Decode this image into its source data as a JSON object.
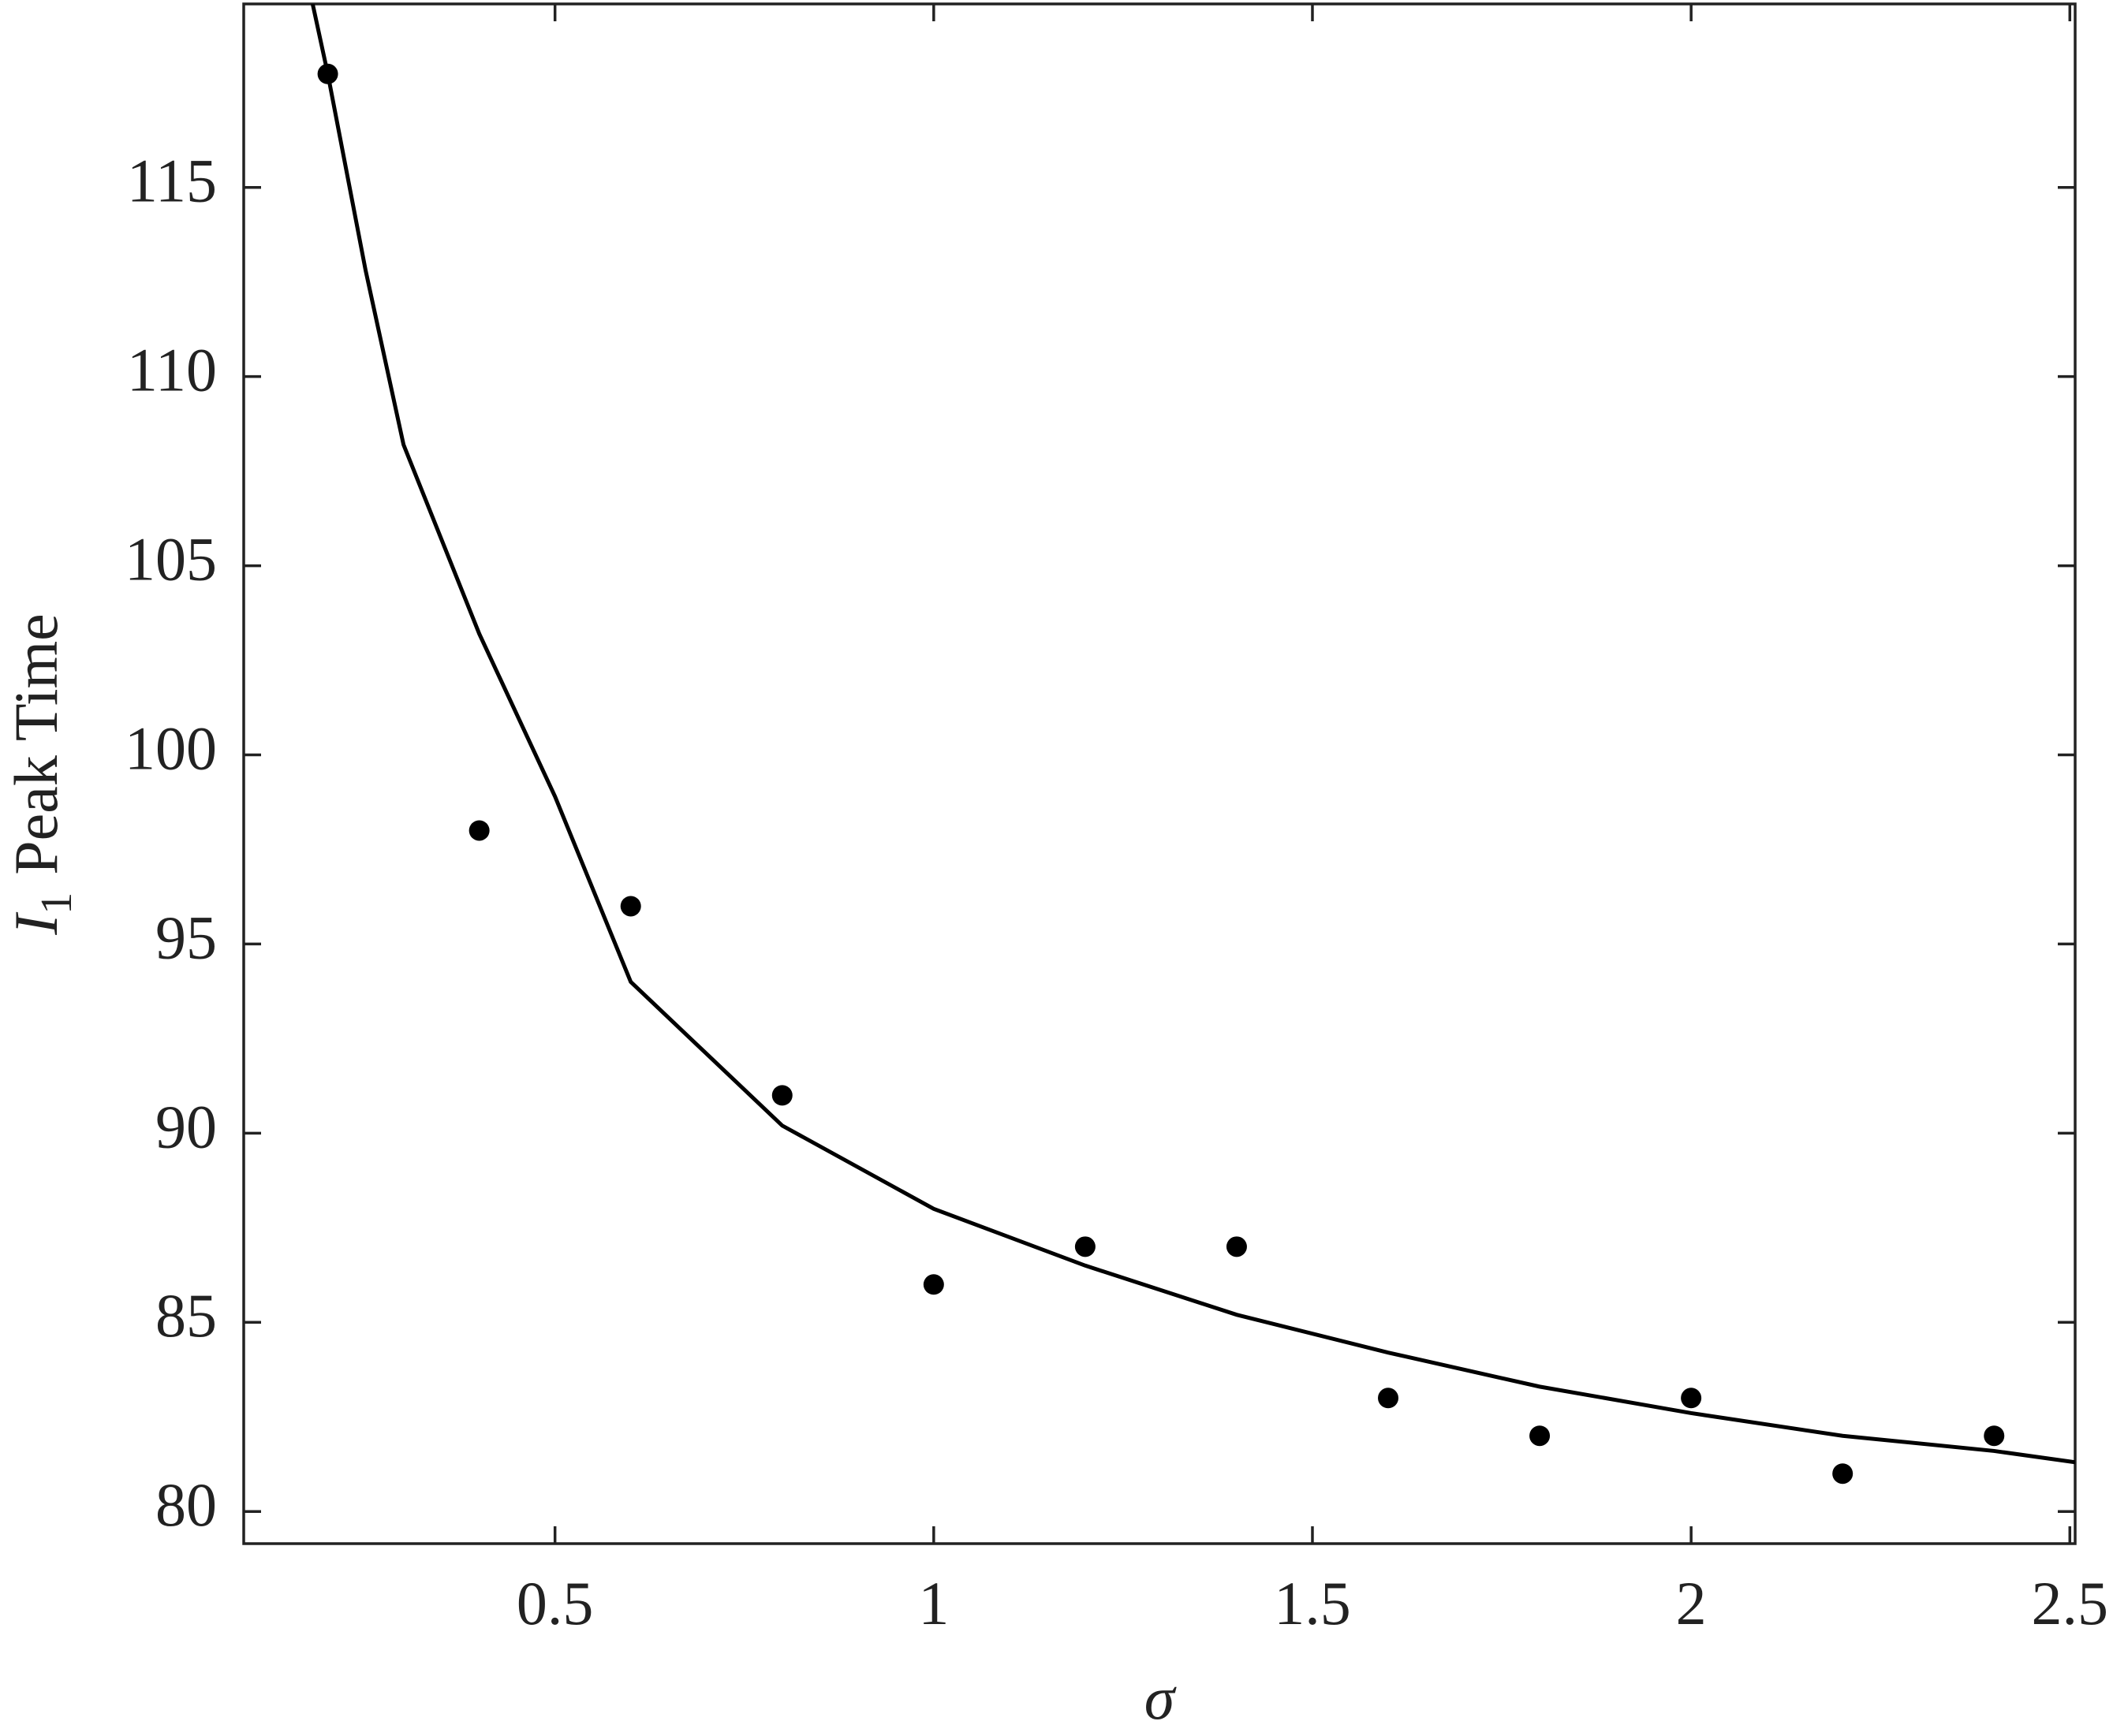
{
  "chart_data": {
    "type": "scatter",
    "xlabel": "σ",
    "ylabel": {
      "italic": "I",
      "sub": "1",
      "text": "Peak Time"
    },
    "xlim": [
      0.089,
      2.507
    ],
    "ylim": [
      79.15,
      119.85
    ],
    "xticks": [
      0.5,
      1,
      1.5,
      2,
      2.5
    ],
    "yticks": [
      80,
      85,
      90,
      95,
      100,
      105,
      110,
      115
    ],
    "series": [
      {
        "type": "scatter",
        "color": "#000000",
        "x": [
          0.2,
          0.4,
          0.6,
          0.8,
          1.0,
          1.2,
          1.4,
          1.6,
          1.8,
          2.0,
          2.2,
          2.4
        ],
        "y": [
          118,
          98,
          96,
          91,
          86,
          87,
          87,
          83,
          82,
          83,
          81,
          82
        ]
      },
      {
        "type": "line",
        "color": "#000000",
        "x": [
          0.18,
          0.2,
          0.25,
          0.3,
          0.4,
          0.5,
          0.6,
          0.8,
          1.0,
          1.2,
          1.4,
          1.6,
          1.8,
          2.0,
          2.2,
          2.4,
          2.507
        ],
        "y": [
          119.85,
          118.0,
          112.8,
          108.2,
          103.2,
          98.9,
          94.0,
          90.2,
          88.0,
          86.5,
          85.2,
          84.2,
          83.3,
          82.6,
          82.0,
          81.6,
          81.3
        ]
      }
    ]
  }
}
